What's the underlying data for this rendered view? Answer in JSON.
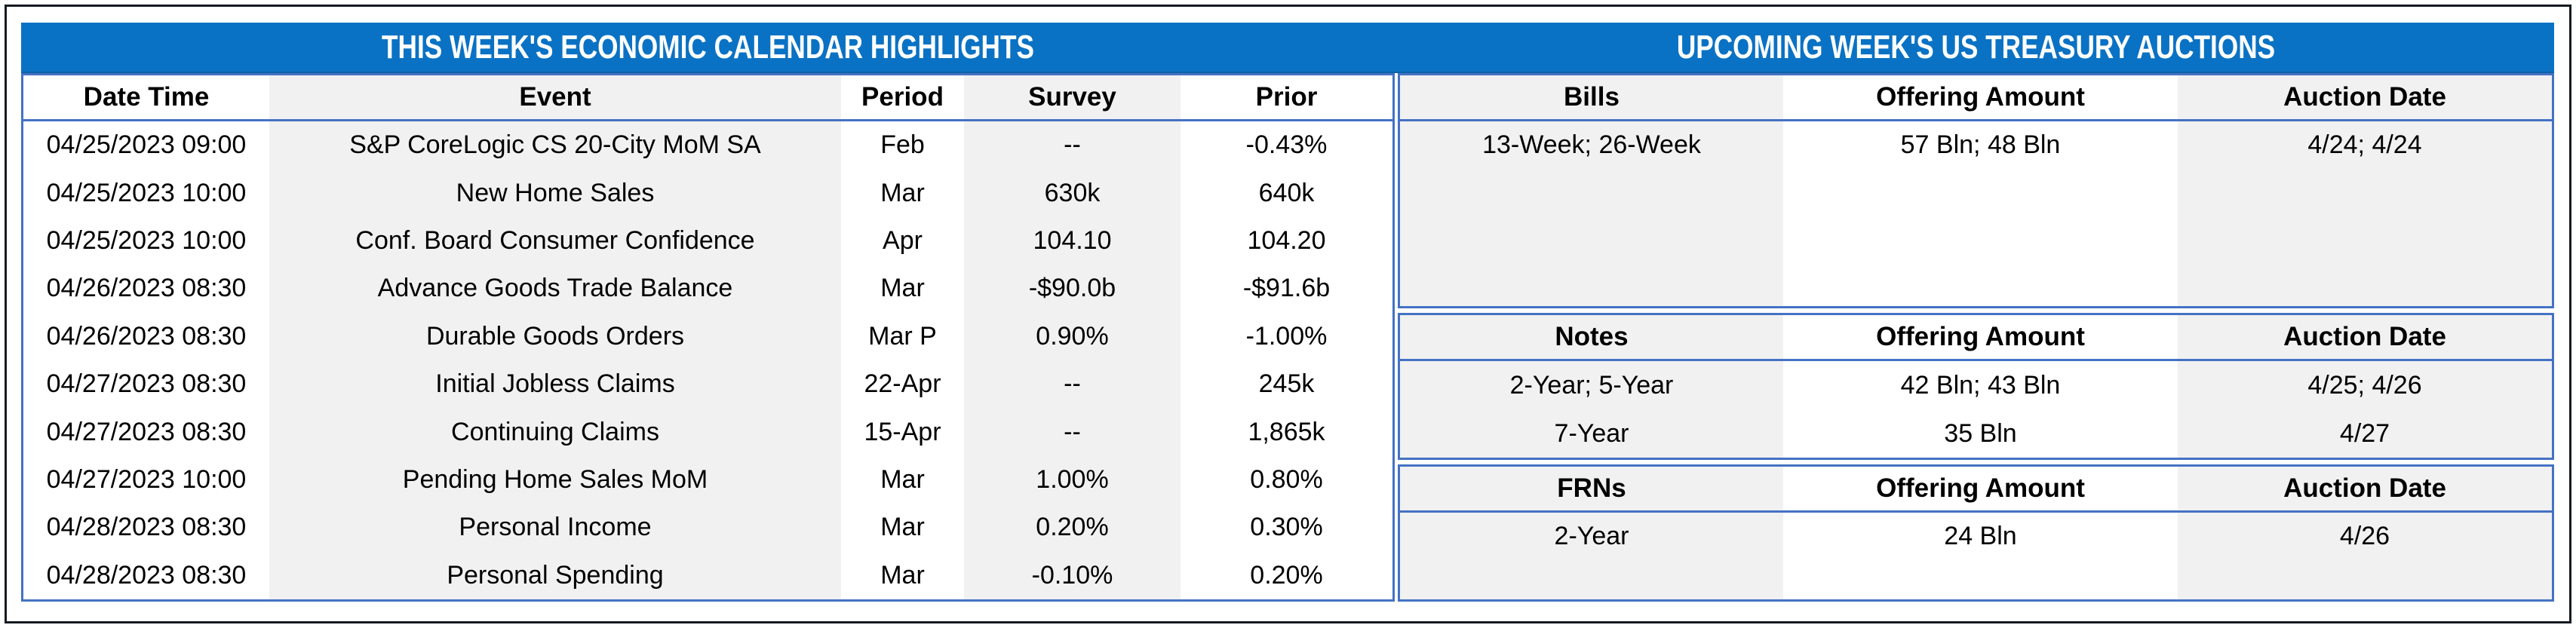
{
  "titles": {
    "left": "THIS WEEK'S ECONOMIC CALENDAR HIGHLIGHTS",
    "right": "UPCOMING WEEK'S US TREASURY AUCTIONS"
  },
  "calendar": {
    "columns": [
      "Date Time",
      "Event",
      "Period",
      "Survey",
      "Prior"
    ],
    "rows": [
      [
        "04/25/2023 09:00",
        "S&P CoreLogic CS 20-City MoM SA",
        "Feb",
        "--",
        "-0.43%"
      ],
      [
        "04/25/2023 10:00",
        "New Home Sales",
        "Mar",
        "630k",
        "640k"
      ],
      [
        "04/25/2023 10:00",
        "Conf. Board Consumer Confidence",
        "Apr",
        "104.10",
        "104.20"
      ],
      [
        "04/26/2023 08:30",
        "Advance Goods Trade Balance",
        "Mar",
        "-$90.0b",
        "-$91.6b"
      ],
      [
        "04/26/2023 08:30",
        "Durable Goods Orders",
        "Mar P",
        "0.90%",
        "-1.00%"
      ],
      [
        "04/27/2023 08:30",
        "Initial Jobless Claims",
        "22-Apr",
        "--",
        "245k"
      ],
      [
        "04/27/2023 08:30",
        "Continuing Claims",
        "15-Apr",
        "--",
        "1,865k"
      ],
      [
        "04/27/2023 10:00",
        "Pending Home Sales MoM",
        "Mar",
        "1.00%",
        "0.80%"
      ],
      [
        "04/28/2023 08:30",
        "Personal Income",
        "Mar",
        "0.20%",
        "0.30%"
      ],
      [
        "04/28/2023 08:30",
        "Personal Spending",
        "Mar",
        "-0.10%",
        "0.20%"
      ]
    ]
  },
  "auctions": {
    "bills": {
      "columns": [
        "Bills",
        "Offering Amount",
        "Auction Date"
      ],
      "rows": [
        [
          "13-Week; 26-Week",
          "57 Bln; 48 Bln",
          "4/24; 4/24"
        ]
      ]
    },
    "notes": {
      "columns": [
        "Notes",
        "Offering Amount",
        "Auction Date"
      ],
      "rows": [
        [
          "2-Year; 5-Year",
          "42 Bln; 43 Bln",
          "4/25; 4/26"
        ],
        [
          "7-Year",
          "35 Bln",
          "4/27"
        ]
      ]
    },
    "frns": {
      "columns": [
        "FRNs",
        "Offering Amount",
        "Auction Date"
      ],
      "rows": [
        [
          "2-Year",
          "24 Bln",
          "4/26"
        ]
      ]
    }
  },
  "colors": {
    "title_bar_blue": "#0a72c4",
    "cell_border_blue": "#4472c4",
    "column_shade_gray": "#f1f1f1",
    "outer_frame": "#161b22",
    "title_text": "#ffffff",
    "body_text": "#000000"
  }
}
